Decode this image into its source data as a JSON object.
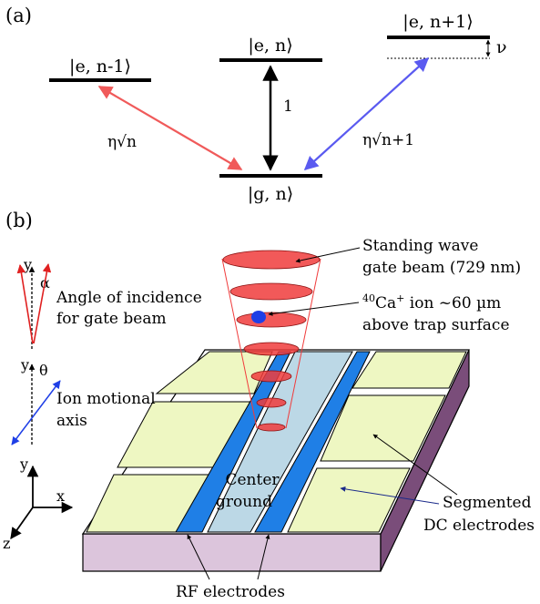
{
  "panel_a": {
    "label": "(a)",
    "levels": {
      "e_n_minus": "|e, n-1⟩",
      "e_n": "|e, n⟩",
      "e_n_plus": "|e, n+1⟩",
      "g_n": "|g, n⟩"
    },
    "transitions": {
      "carrier": "1",
      "red_sideband": "η√n",
      "blue_sideband": "η√n+1",
      "detuning": "ν"
    },
    "colors": {
      "red": "#f05a5a",
      "blue": "#5a5af0",
      "black": "#000000"
    }
  },
  "panel_b": {
    "label": "(b)",
    "axes_labels": {
      "y_top": "y",
      "alpha": "α",
      "y_mid": "y",
      "theta": "θ",
      "y_bottom": "y",
      "x_bottom": "x",
      "z_bottom": "z"
    },
    "annotations": {
      "angle_line1": "Angle of incidence",
      "angle_line2": "for gate beam",
      "motional_line1": "Ion motional",
      "motional_line2": "axis",
      "standing_line1": "Standing wave",
      "standing_line2": "gate beam (729 nm)",
      "ion_mass": "40",
      "ion_element": "Ca",
      "ion_charge": "+",
      "ion_text": " ion ~60 µm",
      "ion_line2": "above trap surface",
      "center_line1": "Center",
      "center_line2": "ground",
      "segmented_line1": "Segmented",
      "segmented_line2": "DC electrodes",
      "rf": "RF electrodes"
    },
    "colors": {
      "dc_electrode": "#eef7c2",
      "rf_electrode": "#1f7fe6",
      "ground": "#bcd8e6",
      "chip_side": "#dcc5dc",
      "chip_edge": "#7a4d7a",
      "beam_red": "#f03c3c",
      "ion": "#1f3fe6"
    }
  }
}
